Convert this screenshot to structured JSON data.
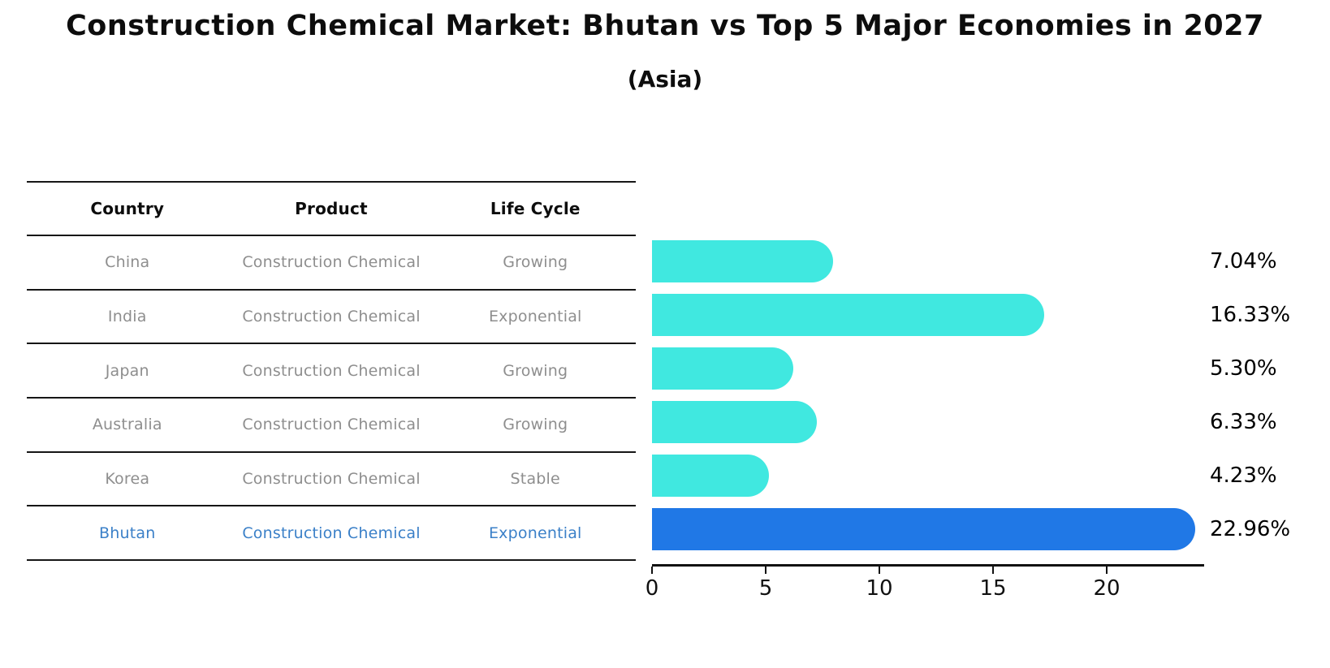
{
  "title": "Construction Chemical Market: Bhutan vs Top 5 Major Economies in 2027",
  "subtitle": "(Asia)",
  "table": {
    "headers": [
      "Country",
      "Product",
      "Life Cycle"
    ],
    "rows": [
      {
        "country": "China",
        "product": "Construction Chemical",
        "life_cycle": "Growing",
        "highlight": false
      },
      {
        "country": "India",
        "product": "Construction Chemical",
        "life_cycle": "Exponential",
        "highlight": false
      },
      {
        "country": "Japan",
        "product": "Construction Chemical",
        "life_cycle": "Growing",
        "highlight": false
      },
      {
        "country": "Australia",
        "product": "Construction Chemical",
        "life_cycle": "Growing",
        "highlight": false
      },
      {
        "country": "Korea",
        "product": "Construction Chemical",
        "life_cycle": "Stable",
        "highlight": false
      },
      {
        "country": "Bhutan",
        "product": "Construction Chemical",
        "life_cycle": "Exponential",
        "highlight": true
      }
    ]
  },
  "chart_data": {
    "type": "bar",
    "orientation": "horizontal",
    "title": "Construction Chemical Market: Bhutan vs Top 5 Major Economies in 2027",
    "subtitle": "(Asia)",
    "categories": [
      "China",
      "India",
      "Japan",
      "Australia",
      "Korea",
      "Bhutan"
    ],
    "values": [
      7.04,
      16.33,
      5.3,
      6.33,
      4.23,
      22.96
    ],
    "value_labels": [
      "7.04%",
      "16.33%",
      "5.30%",
      "6.33%",
      "4.23%",
      "22.96%"
    ],
    "highlight_index": 5,
    "highlight_category": "Bhutan",
    "x_ticks": [
      "0",
      "5",
      "10",
      "15",
      "20"
    ],
    "x_tick_values": [
      0,
      5,
      10,
      15,
      20
    ],
    "xlim": [
      0,
      24.3
    ],
    "grid": false,
    "legend": false
  },
  "colors": {
    "bar_fill": "#40e8e0",
    "highlight_bar_fill": "#2078e6",
    "highlight_text": "#3b80c8",
    "table_text": "#8e8e8e",
    "heading_text": "#0d0d0d",
    "axis": "#111111",
    "background": "#ffffff"
  }
}
